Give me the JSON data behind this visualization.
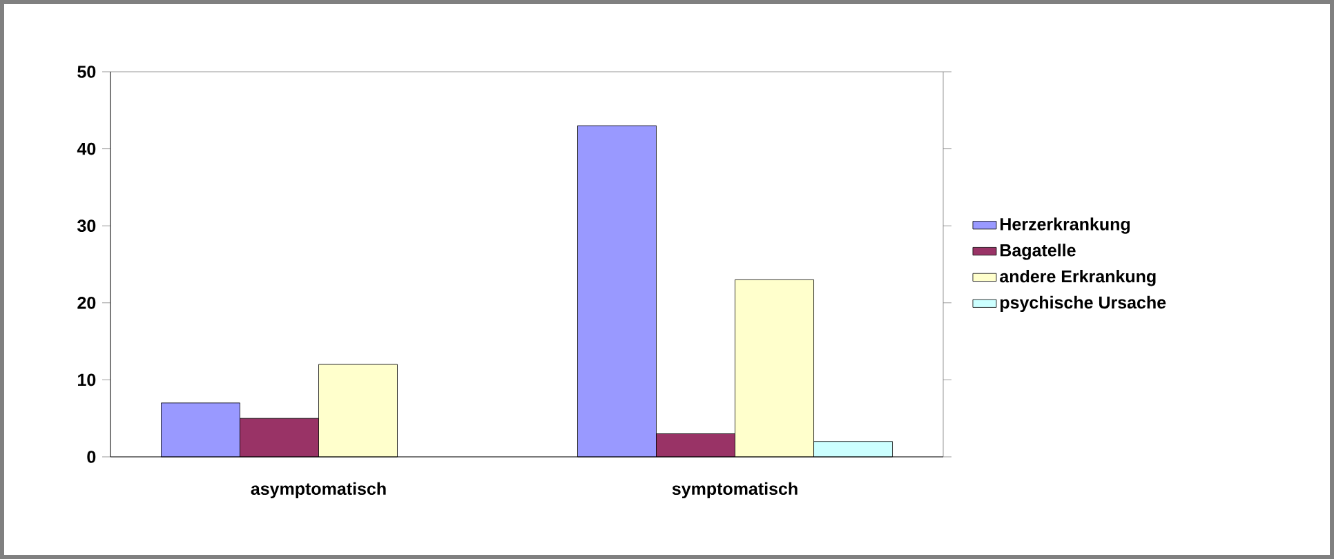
{
  "chart_data": {
    "type": "bar",
    "categories": [
      "asymptomatisch",
      "symptomatisch"
    ],
    "series": [
      {
        "name": "Herzerkrankung",
        "color": "#9999ff",
        "values": [
          7,
          43
        ]
      },
      {
        "name": "Bagatelle",
        "color": "#993366",
        "values": [
          5,
          3
        ]
      },
      {
        "name": "andere Erkrankung",
        "color": "#ffffcc",
        "values": [
          12,
          23
        ]
      },
      {
        "name": "psychische Ursache",
        "color": "#ccffff",
        "values": [
          null,
          2
        ]
      }
    ],
    "ylim": [
      0,
      50
    ],
    "yticks": [
      0,
      10,
      20,
      30,
      40,
      50
    ],
    "legend": "right"
  }
}
